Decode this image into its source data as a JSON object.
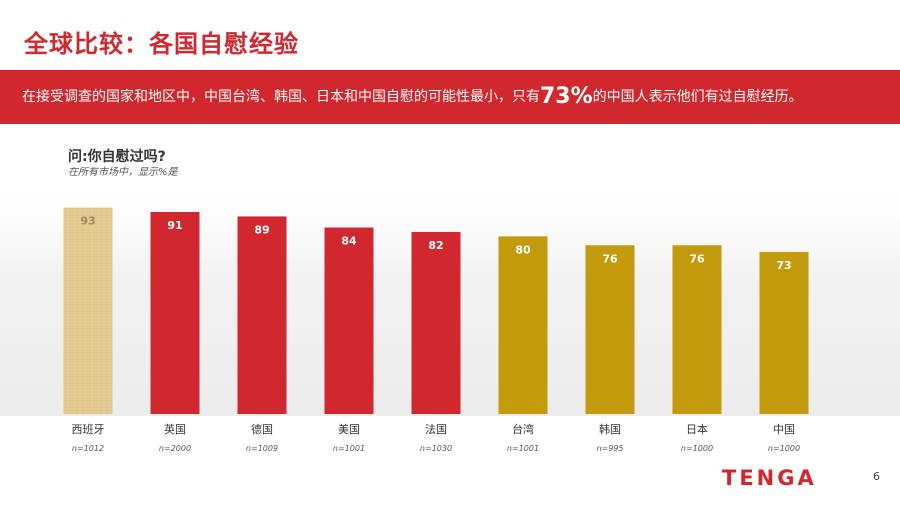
{
  "header": {
    "title": "全球比较：各国自慰经验"
  },
  "banner": {
    "text_before": "在接受调查的国家和地区中，中国台湾、韩国、日本和中国自慰的可能性最小，只有",
    "highlight": "73%",
    "text_after": "的中国人表示他们有过自慰经历。"
  },
  "question": {
    "title": "问:你自慰过吗?",
    "subtitle": "在所有市场中，显示%是"
  },
  "chart_data": {
    "type": "bar",
    "categories": [
      "西班牙",
      "英国",
      "德国",
      "美国",
      "法国",
      "台湾",
      "韩国",
      "日本",
      "中国"
    ],
    "sample_sizes": [
      "n=1012",
      "n=2000",
      "n=1009",
      "n=1001",
      "n=1030",
      "n=1001",
      "n=995",
      "n=1000",
      "n=1000"
    ],
    "values": [
      93,
      91,
      89,
      84,
      82,
      80,
      76,
      76,
      73
    ],
    "bar_colors": [
      "#e2cc92",
      "#d1282f",
      "#d1282f",
      "#d1282f",
      "#d1282f",
      "#c29a0b",
      "#c29a0b",
      "#c29a0b",
      "#c29a0b"
    ],
    "ylim": [
      0,
      100
    ],
    "grid": false,
    "data_labels": true
  },
  "footer": {
    "logo_text": "TENGA",
    "page_number": "6"
  },
  "colors": {
    "brand_red": "#d0282e",
    "gold": "#c29a0b",
    "parchment": "#e2cc92"
  }
}
